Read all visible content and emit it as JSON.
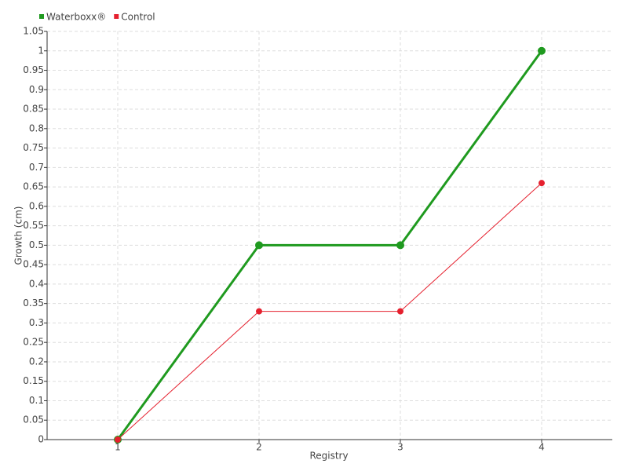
{
  "chart_data": {
    "type": "line",
    "x": [
      1,
      2,
      3,
      4
    ],
    "xlim": [
      0.5,
      4.5
    ],
    "xticks": [
      1,
      2,
      3,
      4
    ],
    "ylim": [
      0,
      1.05
    ],
    "yticks": [
      0,
      0.05,
      0.1,
      0.15,
      0.2,
      0.25,
      0.3,
      0.35,
      0.4,
      0.45,
      0.5,
      0.55,
      0.6,
      0.65,
      0.7,
      0.75,
      0.8,
      0.85,
      0.9,
      0.95,
      1,
      1.05
    ],
    "x_label": "Registry",
    "y_label": "Growth (cm)",
    "grid": true,
    "legend": "top-left",
    "series": [
      {
        "name": "Waterboxx®",
        "color": "#1f9a1f",
        "values": [
          0,
          0.5,
          0.5,
          1
        ]
      },
      {
        "name": "Control",
        "color": "#e5202e",
        "values": [
          0,
          0.33,
          0.33,
          0.66
        ]
      }
    ]
  }
}
